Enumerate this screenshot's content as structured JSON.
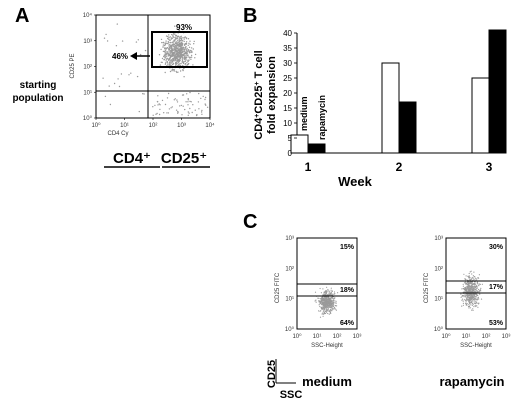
{
  "panels": {
    "a": {
      "letter": "A",
      "row_label": [
        "starting",
        "population"
      ],
      "y_axis_label": "CD25 PE",
      "x_axis_label": "CD4 Cy",
      "ticks": [
        "10⁰",
        "10¹",
        "10²",
        "10³",
        "10⁴"
      ],
      "gate_percent": "93%",
      "sorted_percent": "46%",
      "bottom_label_left": "CD4⁺",
      "bottom_label_right": "CD25⁺"
    },
    "b": {
      "letter": "B"
    },
    "c": {
      "letter": "C",
      "ticks": [
        "10⁰",
        "10¹",
        "10²",
        "10³"
      ],
      "y_axis_label": "CD25 FITC",
      "x_axis_label": "SSC-Height",
      "plots": [
        {
          "label": "medium",
          "quadrants": [
            "15%",
            "18%",
            "64%"
          ]
        },
        {
          "label": "rapamycin",
          "quadrants": [
            "30%",
            "17%",
            "53%"
          ]
        }
      ],
      "corner_y": "CD25",
      "corner_x": "SSC"
    }
  },
  "colors": {
    "medium": "#ffffff",
    "rapamycin": "#000000",
    "dots": "#9a9a9a"
  },
  "chart_data": [
    {
      "type": "bar",
      "title": "",
      "xlabel": "Week",
      "ylabel": "CD4+CD25+ T cell fold expansion",
      "categories": [
        "1",
        "2",
        "3"
      ],
      "series": [
        {
          "name": "medium",
          "values": [
            6,
            30,
            25
          ]
        },
        {
          "name": "rapamycin",
          "values": [
            3,
            17,
            41
          ]
        }
      ],
      "ylim": [
        0,
        40
      ],
      "yticks": [
        "0",
        "5",
        "10",
        "15",
        "20",
        "25",
        "30",
        "35",
        "40"
      ],
      "grid": false,
      "legend": "labels on week 1 bars"
    }
  ]
}
